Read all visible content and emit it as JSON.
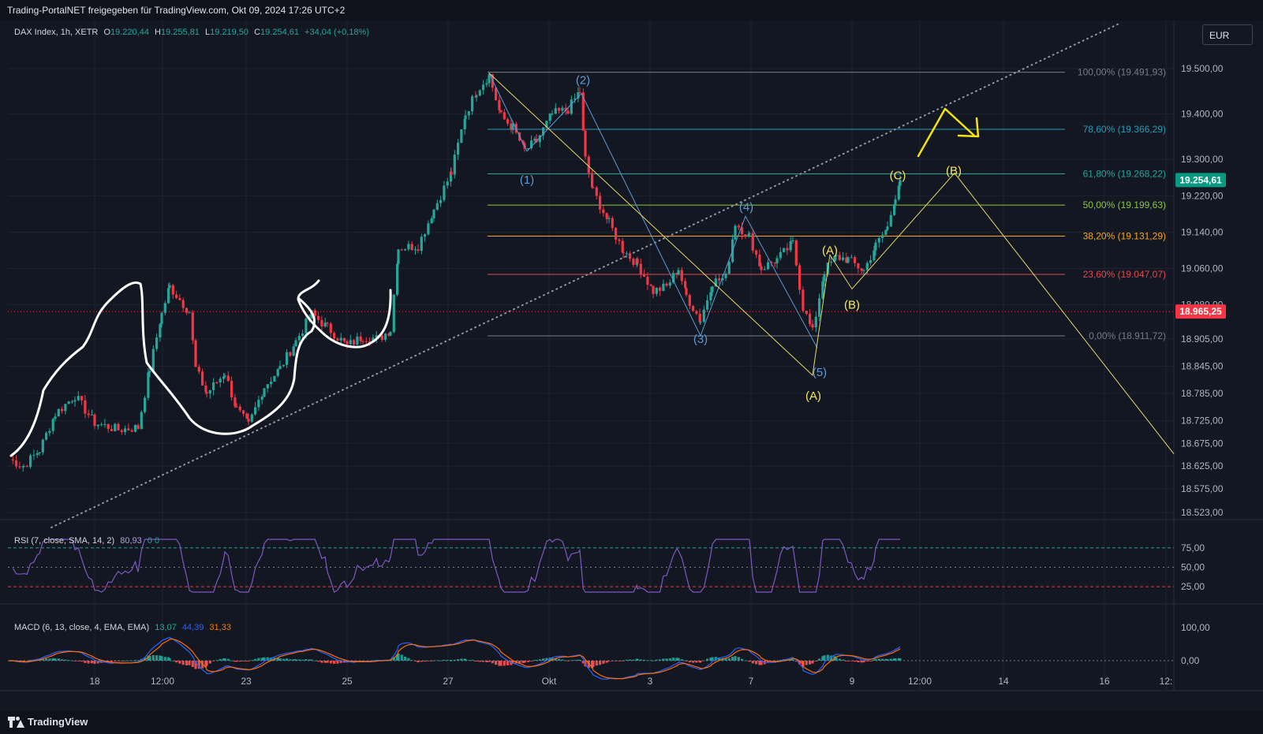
{
  "header": {
    "share_text": "Trading-PortalNET freigegeben für TradingView.com, Okt 09, 2024 17:26 UTC+2"
  },
  "footer": {
    "brand": "TradingView"
  },
  "currency_button": "EUR",
  "legend": {
    "symbol": "DAX Index, 1h, XETR",
    "o_label": "O",
    "o_value": "19.220,44",
    "h_label": "H",
    "h_value": "19.255,81",
    "l_label": "L",
    "l_value": "19.219,50",
    "c_label": "C",
    "c_value": "19.254,61",
    "change": "+34,04 (+0,18%)"
  },
  "rsi_legend": {
    "label": "RSI (7, close, SMA, 14, 2)",
    "value": "80,93",
    "extra1": "0",
    "extra2": "0"
  },
  "macd_legend": {
    "label": "MACD (6, 13, close, 4, EMA, EMA)",
    "v1": "13,07",
    "v2": "44,39",
    "v3": "31,33"
  },
  "colors": {
    "up": "#26a69a",
    "down": "#f23645",
    "background": "#131722",
    "grid": "#1f2330",
    "yellow": "#f5e663",
    "wave_blue": "#5b9bd5",
    "rsi": "#7e57c2",
    "macd": "#2962ff",
    "signal": "#ff6d00"
  },
  "chart_data": {
    "type": "candlestick",
    "instrument": "DAX Index, 1h, XETR",
    "x_ticks": [
      "18",
      "12:00",
      "23",
      "25",
      "27",
      "Okt",
      "3",
      "7",
      "9",
      "12:00",
      "14",
      "16",
      "12:"
    ],
    "y_ticks": [
      "19.500,00",
      "19.400,00",
      "19.300,00",
      "19.220,00",
      "19.140,00",
      "19.060,00",
      "18.980,00",
      "18.905,00",
      "18.845,00",
      "18.785,00",
      "18.725,00",
      "18.675,00",
      "18.625,00",
      "18.575,00",
      "18.523,00"
    ],
    "last_price_label": "19.254,61",
    "ref_price_label": "18.965,25",
    "fib_levels": [
      {
        "label": "100,00% (19.491,93)",
        "price": 19491.93,
        "color": "#787b86"
      },
      {
        "label": "78,60% (19.366,29)",
        "price": 19366.29,
        "color": "#2a9bb7"
      },
      {
        "label": "61,80% (19.268,22)",
        "price": 19268.22,
        "color": "#26a69a"
      },
      {
        "label": "50,00% (19.199,63)",
        "price": 19199.63,
        "color": "#8bc34a"
      },
      {
        "label": "38,20% (19.131,29)",
        "price": 19131.29,
        "color": "#f5a623"
      },
      {
        "label": "23,60% (19.047,07)",
        "price": 19047.07,
        "color": "#e04a52"
      },
      {
        "label": "0,00% (18.911,72)",
        "price": 18911.72,
        "color": "#787b86"
      }
    ],
    "wave_labels": [
      {
        "text": "(1)",
        "price": 19255,
        "color": "#5b9bd5"
      },
      {
        "text": "(2)",
        "price": 19475,
        "color": "#5b9bd5"
      },
      {
        "text": "(3)",
        "price": 18905,
        "color": "#5b9bd5"
      },
      {
        "text": "(4)",
        "price": 19195,
        "color": "#5b9bd5"
      },
      {
        "text": "(5)",
        "price": 18832,
        "color": "#5b9bd5"
      },
      {
        "text": "(A)",
        "price": 18780,
        "color": "#f5e663"
      },
      {
        "text": "(A)",
        "price": 19100,
        "color": "#f5e663"
      },
      {
        "text": "(B)",
        "price": 18980,
        "color": "#f5e663"
      },
      {
        "text": "(C)",
        "price": 19265,
        "color": "#f5e663"
      },
      {
        "text": "(B)",
        "price": 19275,
        "color": "#f5e663"
      }
    ],
    "rsi_ticks": [
      "75,00",
      "50,00",
      "25,00"
    ],
    "macd_ticks": [
      "100,00",
      "0,00"
    ]
  }
}
